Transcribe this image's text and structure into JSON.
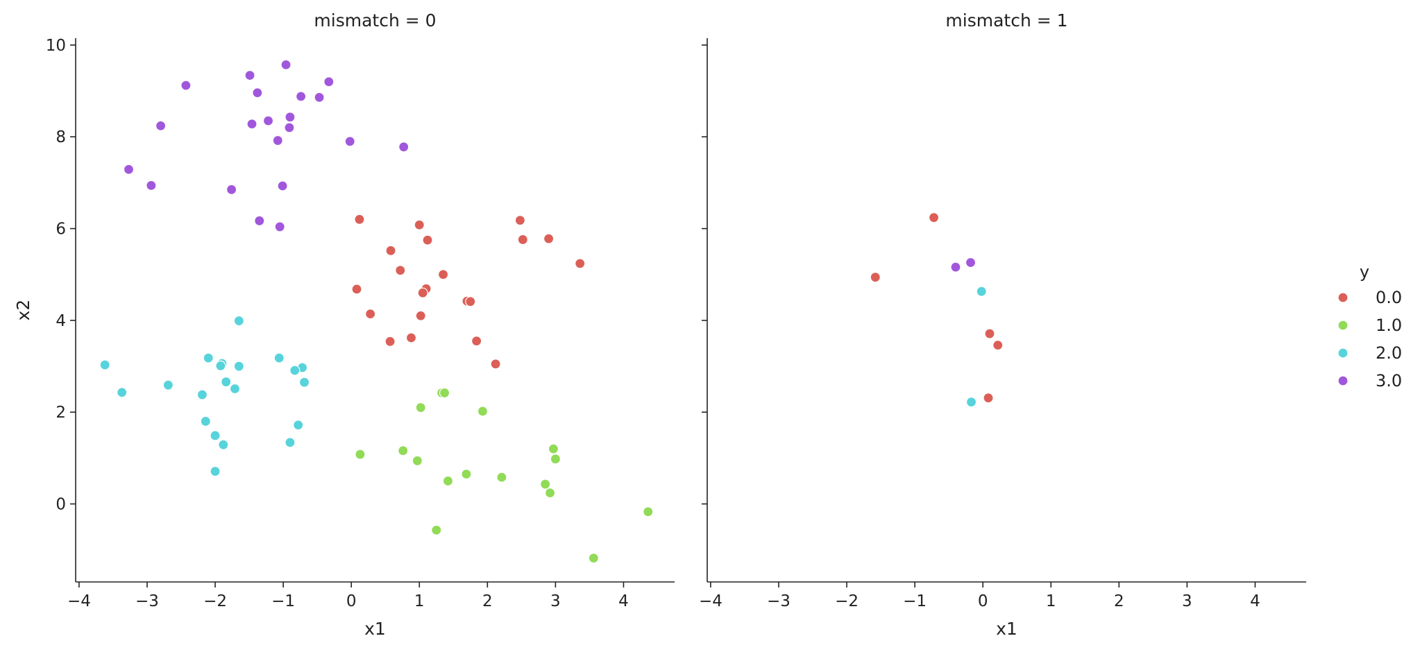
{
  "chart_data": {
    "type": "scatter",
    "xlabel": "x1",
    "ylabel": "x2",
    "xlim": [
      -4.05,
      4.75
    ],
    "ylim": [
      -1.7,
      10.15
    ],
    "x_ticks": [
      -4,
      -3,
      -2,
      -1,
      0,
      1,
      2,
      3,
      4
    ],
    "y_ticks": [
      0,
      2,
      4,
      6,
      8,
      10
    ],
    "x_tick_labels": [
      "−4",
      "−3",
      "−2",
      "−1",
      "0",
      "1",
      "2",
      "3",
      "4"
    ],
    "y_tick_labels": [
      "0",
      "2",
      "4",
      "6",
      "8",
      "10"
    ],
    "grid": false,
    "legend": {
      "title": "y",
      "placement": "right",
      "entries": [
        {
          "label": "0.0",
          "color": "#db5f57"
        },
        {
          "label": "1.0",
          "color": "#91db57"
        },
        {
          "label": "2.0",
          "color": "#57d3db"
        },
        {
          "label": "3.0",
          "color": "#a157db"
        }
      ]
    },
    "panels": [
      {
        "title": "mismatch = 0",
        "series": [
          {
            "name": "0.0",
            "points": [
              [
                0.12,
                6.2
              ],
              [
                1.0,
                6.08
              ],
              [
                2.48,
                6.18
              ],
              [
                1.12,
                5.75
              ],
              [
                2.52,
                5.76
              ],
              [
                2.9,
                5.78
              ],
              [
                0.58,
                5.52
              ],
              [
                3.36,
                5.24
              ],
              [
                0.72,
                5.09
              ],
              [
                1.35,
                5.0
              ],
              [
                0.08,
                4.68
              ],
              [
                1.1,
                4.69
              ],
              [
                1.05,
                4.6
              ],
              [
                1.7,
                4.42
              ],
              [
                1.75,
                4.41
              ],
              [
                0.28,
                4.14
              ],
              [
                1.02,
                4.1
              ],
              [
                0.88,
                3.62
              ],
              [
                0.57,
                3.54
              ],
              [
                1.84,
                3.55
              ],
              [
                2.12,
                3.05
              ]
            ]
          },
          {
            "name": "1.0",
            "points": [
              [
                1.33,
                2.42
              ],
              [
                1.37,
                2.42
              ],
              [
                1.02,
                2.1
              ],
              [
                1.93,
                2.02
              ],
              [
                2.97,
                1.2
              ],
              [
                0.76,
                1.16
              ],
              [
                0.13,
                1.08
              ],
              [
                3.0,
                0.98
              ],
              [
                0.97,
                0.94
              ],
              [
                1.69,
                0.65
              ],
              [
                2.21,
                0.58
              ],
              [
                1.42,
                0.5
              ],
              [
                2.85,
                0.43
              ],
              [
                2.92,
                0.24
              ],
              [
                4.36,
                -0.17
              ],
              [
                1.25,
                -0.57
              ],
              [
                3.56,
                -1.18
              ]
            ]
          },
          {
            "name": "2.0",
            "points": [
              [
                -1.65,
                3.99
              ],
              [
                -3.62,
                3.03
              ],
              [
                -2.1,
                3.18
              ],
              [
                -1.9,
                3.06
              ],
              [
                -1.92,
                3.01
              ],
              [
                -1.65,
                3.0
              ],
              [
                -1.06,
                3.18
              ],
              [
                -0.72,
                2.97
              ],
              [
                -0.83,
                2.91
              ],
              [
                -3.37,
                2.43
              ],
              [
                -2.69,
                2.59
              ],
              [
                -1.84,
                2.66
              ],
              [
                -0.69,
                2.65
              ],
              [
                -1.71,
                2.51
              ],
              [
                -2.19,
                2.38
              ],
              [
                -2.14,
                1.8
              ],
              [
                -0.78,
                1.72
              ],
              [
                -2.0,
                1.49
              ],
              [
                -1.88,
                1.29
              ],
              [
                -0.9,
                1.34
              ],
              [
                -2.0,
                0.71
              ]
            ]
          },
          {
            "name": "3.0",
            "points": [
              [
                -0.96,
                9.57
              ],
              [
                -1.49,
                9.34
              ],
              [
                -0.33,
                9.2
              ],
              [
                -2.43,
                9.12
              ],
              [
                -1.38,
                8.96
              ],
              [
                -0.74,
                8.88
              ],
              [
                -0.47,
                8.86
              ],
              [
                -0.9,
                8.43
              ],
              [
                -1.22,
                8.35
              ],
              [
                -1.46,
                8.28
              ],
              [
                -2.8,
                8.24
              ],
              [
                -0.91,
                8.2
              ],
              [
                -1.08,
                7.92
              ],
              [
                -0.02,
                7.9
              ],
              [
                0.77,
                7.78
              ],
              [
                -3.27,
                7.29
              ],
              [
                -2.94,
                6.94
              ],
              [
                -1.01,
                6.93
              ],
              [
                -1.76,
                6.85
              ],
              [
                -1.35,
                6.17
              ],
              [
                -1.05,
                6.04
              ]
            ]
          }
        ]
      },
      {
        "title": "mismatch = 1",
        "series": [
          {
            "name": "0.0",
            "points": [
              [
                -0.72,
                6.24
              ],
              [
                -1.58,
                4.94
              ],
              [
                0.1,
                3.71
              ],
              [
                0.22,
                3.46
              ],
              [
                0.08,
                2.31
              ]
            ]
          },
          {
            "name": "1.0",
            "points": []
          },
          {
            "name": "2.0",
            "points": [
              [
                -0.02,
                4.63
              ],
              [
                -0.17,
                2.22
              ]
            ]
          },
          {
            "name": "3.0",
            "points": [
              [
                -0.4,
                5.16
              ],
              [
                -0.18,
                5.26
              ]
            ]
          }
        ]
      }
    ]
  }
}
